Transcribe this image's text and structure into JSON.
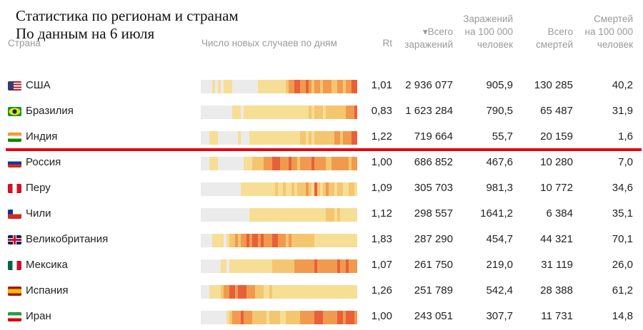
{
  "title": "Статистика по регионам и странам",
  "subtitle": "По данным на 6 июля",
  "columns": {
    "country": "Страна",
    "chart": "Число новых случаев по дням",
    "rt": "Rt",
    "total_cases_line1": "▾Всего",
    "total_cases_line2": "заражений",
    "cases_per_100k_line1": "Заражений",
    "cases_per_100k_line2": "на 100 000",
    "cases_per_100k_line3": "человек",
    "total_deaths_line1": "Всего",
    "total_deaths_line2": "смертей",
    "deaths_per_100k_line1": "Смертей",
    "deaths_per_100k_line2": "на 100 000",
    "deaths_per_100k_line3": "человек"
  },
  "chart_data": {
    "type": "table",
    "rows": [
      {
        "country": "США",
        "flag": "us",
        "rt": "1,01",
        "total_cases": "2 936 077",
        "cases_per_100k": "905,9",
        "total_deaths": "130 285",
        "deaths_per_100k": "40,2"
      },
      {
        "country": "Бразилия",
        "flag": "br",
        "rt": "0,83",
        "total_cases": "1 623 284",
        "cases_per_100k": "790,5",
        "total_deaths": "65 487",
        "deaths_per_100k": "31,9"
      },
      {
        "country": "Индия",
        "flag": "in",
        "rt": "1,22",
        "total_cases": "719 664",
        "cases_per_100k": "55,7",
        "total_deaths": "20 159",
        "deaths_per_100k": "1,6"
      },
      {
        "country": "Россия",
        "flag": "ru",
        "rt": "1,00",
        "total_cases": "686 852",
        "cases_per_100k": "467,6",
        "total_deaths": "10 280",
        "deaths_per_100k": "7,0"
      },
      {
        "country": "Перу",
        "flag": "pe",
        "rt": "1,09",
        "total_cases": "305 703",
        "cases_per_100k": "981,3",
        "total_deaths": "10 772",
        "deaths_per_100k": "34,6"
      },
      {
        "country": "Чили",
        "flag": "cl",
        "rt": "1,12",
        "total_cases": "298 557",
        "cases_per_100k": "1641,2",
        "total_deaths": "6 384",
        "deaths_per_100k": "35,1"
      },
      {
        "country": "Великобритания",
        "flag": "gb",
        "rt": "1,83",
        "total_cases": "287 290",
        "cases_per_100k": "454,7",
        "total_deaths": "44 321",
        "deaths_per_100k": "70,1"
      },
      {
        "country": "Мексика",
        "flag": "mx",
        "rt": "1,07",
        "total_cases": "261 750",
        "cases_per_100k": "219,0",
        "total_deaths": "31 119",
        "deaths_per_100k": "26,0"
      },
      {
        "country": "Испания",
        "flag": "es",
        "rt": "1,26",
        "total_cases": "251 789",
        "cases_per_100k": "542,4",
        "total_deaths": "28 388",
        "deaths_per_100k": "61,2"
      },
      {
        "country": "Иран",
        "flag": "ir",
        "rt": "1,00",
        "total_cases": "243 051",
        "cases_per_100k": "307,7",
        "total_deaths": "11 731",
        "deaths_per_100k": "14,8"
      }
    ]
  },
  "heat_colors": [
    "#f7de95",
    "#f5c670",
    "#f19a4e",
    "#e8603a",
    "#c82a24"
  ],
  "flag_colors": {
    "us": [
      "#b22234",
      "#ffffff",
      "#3c3b6e"
    ],
    "br": [
      "#009c3b",
      "#ffdf00",
      "#002776"
    ],
    "in": [
      "#ff9933",
      "#ffffff",
      "#138808"
    ],
    "ru": [
      "#ffffff",
      "#0039a6",
      "#d52b1e"
    ],
    "pe": [
      "#d91023",
      "#ffffff",
      "#d91023"
    ],
    "cl": [
      "#ffffff",
      "#d52b1e",
      "#0039a6"
    ],
    "gb": [
      "#012169",
      "#ffffff",
      "#c8102e"
    ],
    "mx": [
      "#006847",
      "#ffffff",
      "#ce1126"
    ],
    "es": [
      "#aa151b",
      "#f1bf00",
      "#aa151b"
    ],
    "ir": [
      "#239f40",
      "#ffffff",
      "#da0000"
    ]
  },
  "heat_strips": [
    [
      0,
      0,
      0,
      0,
      1,
      0,
      1,
      0,
      1,
      1,
      1,
      0,
      0,
      0,
      0,
      0,
      0,
      0,
      0,
      0,
      1,
      1,
      1,
      1,
      1,
      1,
      1,
      1,
      1,
      1,
      2,
      3,
      3,
      4,
      4,
      3,
      3,
      4,
      3,
      2,
      3,
      3,
      2,
      3,
      3,
      3,
      2,
      2,
      3,
      3,
      2,
      3,
      3,
      4,
      4
    ],
    [
      0,
      0,
      0,
      0,
      0,
      0,
      0,
      0,
      0,
      0,
      0,
      1,
      1,
      1,
      0,
      1,
      1,
      1,
      1,
      1,
      1,
      1,
      1,
      1,
      1,
      1,
      1,
      1,
      1,
      1,
      1,
      1,
      1,
      1,
      1,
      1,
      1,
      1,
      2,
      1,
      2,
      2,
      2,
      1,
      2,
      2,
      2,
      2,
      2,
      2,
      2,
      3,
      3,
      3,
      4
    ],
    [
      0,
      0,
      0,
      1,
      1,
      1,
      0,
      0,
      0,
      0,
      0,
      0,
      0,
      1,
      0,
      0,
      0,
      1,
      1,
      1,
      1,
      1,
      1,
      1,
      1,
      1,
      1,
      1,
      1,
      1,
      1,
      1,
      1,
      1,
      1,
      2,
      2,
      1,
      2,
      1,
      2,
      2,
      2,
      2,
      2,
      2,
      2,
      3,
      3,
      2,
      3,
      3,
      3,
      4,
      4
    ],
    [
      0,
      0,
      0,
      1,
      1,
      1,
      0,
      0,
      0,
      0,
      0,
      0,
      0,
      0,
      0,
      1,
      1,
      1,
      2,
      2,
      2,
      2,
      3,
      3,
      3,
      4,
      4,
      4,
      3,
      3,
      3,
      4,
      3,
      3,
      2,
      3,
      3,
      3,
      3,
      4,
      3,
      3,
      3,
      3,
      2,
      2,
      3,
      3,
      3,
      3,
      3,
      3,
      2,
      3,
      3
    ],
    [
      0,
      0,
      0,
      0,
      0,
      0,
      0,
      0,
      0,
      0,
      0,
      0,
      0,
      0,
      1,
      1,
      1,
      1,
      1,
      1,
      1,
      1,
      1,
      1,
      1,
      1,
      2,
      1,
      1,
      2,
      1,
      1,
      2,
      1,
      2,
      2,
      2,
      3,
      2,
      1,
      4,
      2,
      1,
      2,
      3,
      2,
      2,
      1,
      2,
      2,
      1,
      1,
      2,
      2,
      1
    ],
    [
      0,
      0,
      0,
      0,
      0,
      0,
      0,
      0,
      0,
      0,
      0,
      0,
      0,
      0,
      0,
      0,
      0,
      1,
      1,
      1,
      1,
      1,
      1,
      1,
      1,
      1,
      1,
      1,
      1,
      1,
      1,
      1,
      1,
      1,
      1,
      1,
      1,
      1,
      1,
      1,
      1,
      1,
      1,
      1,
      2,
      2,
      2,
      1,
      2,
      1,
      1,
      1,
      1,
      1,
      1
    ],
    [
      0,
      0,
      0,
      0,
      1,
      1,
      1,
      1,
      0,
      1,
      2,
      2,
      3,
      2,
      3,
      3,
      4,
      3,
      4,
      4,
      3,
      4,
      3,
      3,
      3,
      4,
      4,
      3,
      3,
      3,
      2,
      3,
      2,
      2,
      2,
      2,
      2,
      2,
      2,
      2,
      1,
      1,
      1,
      1,
      1,
      1,
      1,
      1,
      1,
      1,
      1,
      1,
      1,
      1,
      1
    ],
    [
      0,
      0,
      0,
      0,
      0,
      0,
      0,
      1,
      1,
      0,
      1,
      1,
      1,
      1,
      1,
      1,
      1,
      1,
      1,
      1,
      1,
      1,
      1,
      1,
      1,
      2,
      2,
      2,
      2,
      2,
      2,
      2,
      2,
      3,
      3,
      3,
      3,
      3,
      3,
      3,
      4,
      3,
      3,
      3,
      3,
      3,
      3,
      3,
      4,
      3,
      3,
      4,
      3,
      3,
      3
    ],
    [
      0,
      0,
      0,
      1,
      1,
      1,
      1,
      2,
      3,
      3,
      4,
      4,
      3,
      4,
      4,
      4,
      3,
      3,
      3,
      2,
      2,
      2,
      1,
      1,
      2,
      1,
      1,
      1,
      1,
      1,
      1,
      1,
      1,
      1,
      1,
      1,
      1,
      1,
      1,
      1,
      1,
      1,
      1,
      1,
      1,
      1,
      1,
      1,
      1,
      1,
      1,
      1,
      1,
      1,
      1
    ],
    [
      0,
      0,
      0,
      0,
      0,
      0,
      0,
      0,
      0,
      1,
      2,
      3,
      3,
      3,
      4,
      3,
      3,
      3,
      2,
      2,
      2,
      2,
      2,
      1,
      2,
      2,
      2,
      2,
      1,
      1,
      2,
      2,
      2,
      2,
      2,
      3,
      3,
      3,
      3,
      3,
      4,
      4,
      4,
      3,
      3,
      3,
      3,
      3,
      4,
      4,
      3,
      4,
      4,
      4,
      3
    ]
  ]
}
